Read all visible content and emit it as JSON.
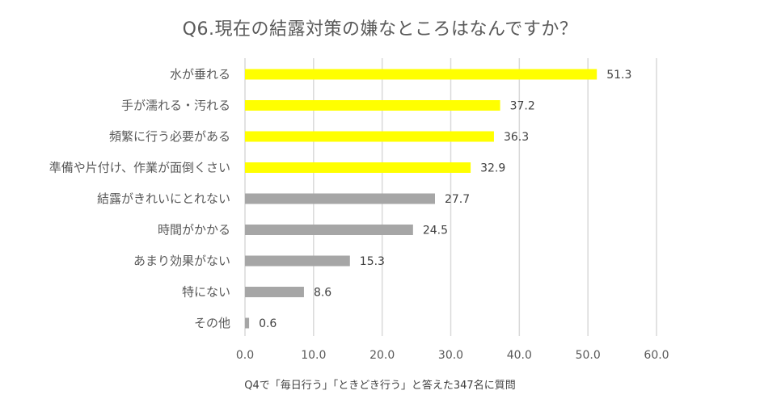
{
  "chart_data": {
    "type": "bar",
    "orientation": "horizontal",
    "title": "Q6.現在の結露対策の嫌なところはなんですか？",
    "note": "Q4で「毎日行う」「ときどき行う」と答えた347名に質問",
    "categories": [
      "水が垂れる",
      "手が濡れる・汚れる",
      "頻繁に行う必要がある",
      "準備や片付け、作業が面倒くさい",
      "結露がきれいにとれない",
      "時間がかかる",
      "あまり効果がない",
      "特にない",
      "その他"
    ],
    "values": [
      51.3,
      37.2,
      36.3,
      32.9,
      27.7,
      24.5,
      15.3,
      8.6,
      0.6
    ],
    "value_labels": [
      "51.3",
      "37.2",
      "36.3",
      "32.9",
      "27.7",
      "24.5",
      "15.3",
      "8.6",
      "0.6"
    ],
    "bar_colors": [
      "#FFFF00",
      "#FFFF00",
      "#FFFF00",
      "#FFFF00",
      "#A6A6A6",
      "#A6A6A6",
      "#A6A6A6",
      "#A6A6A6",
      "#A6A6A6"
    ],
    "xlim": [
      0,
      60
    ],
    "xticks": [
      0,
      10,
      20,
      30,
      40,
      50,
      60
    ],
    "xtick_labels": [
      "0.0",
      "10.0",
      "20.0",
      "30.0",
      "40.0",
      "50.0",
      "60.0"
    ],
    "gridlines": "vertical",
    "grid_color": "#D9D9D9",
    "legend": "none"
  }
}
